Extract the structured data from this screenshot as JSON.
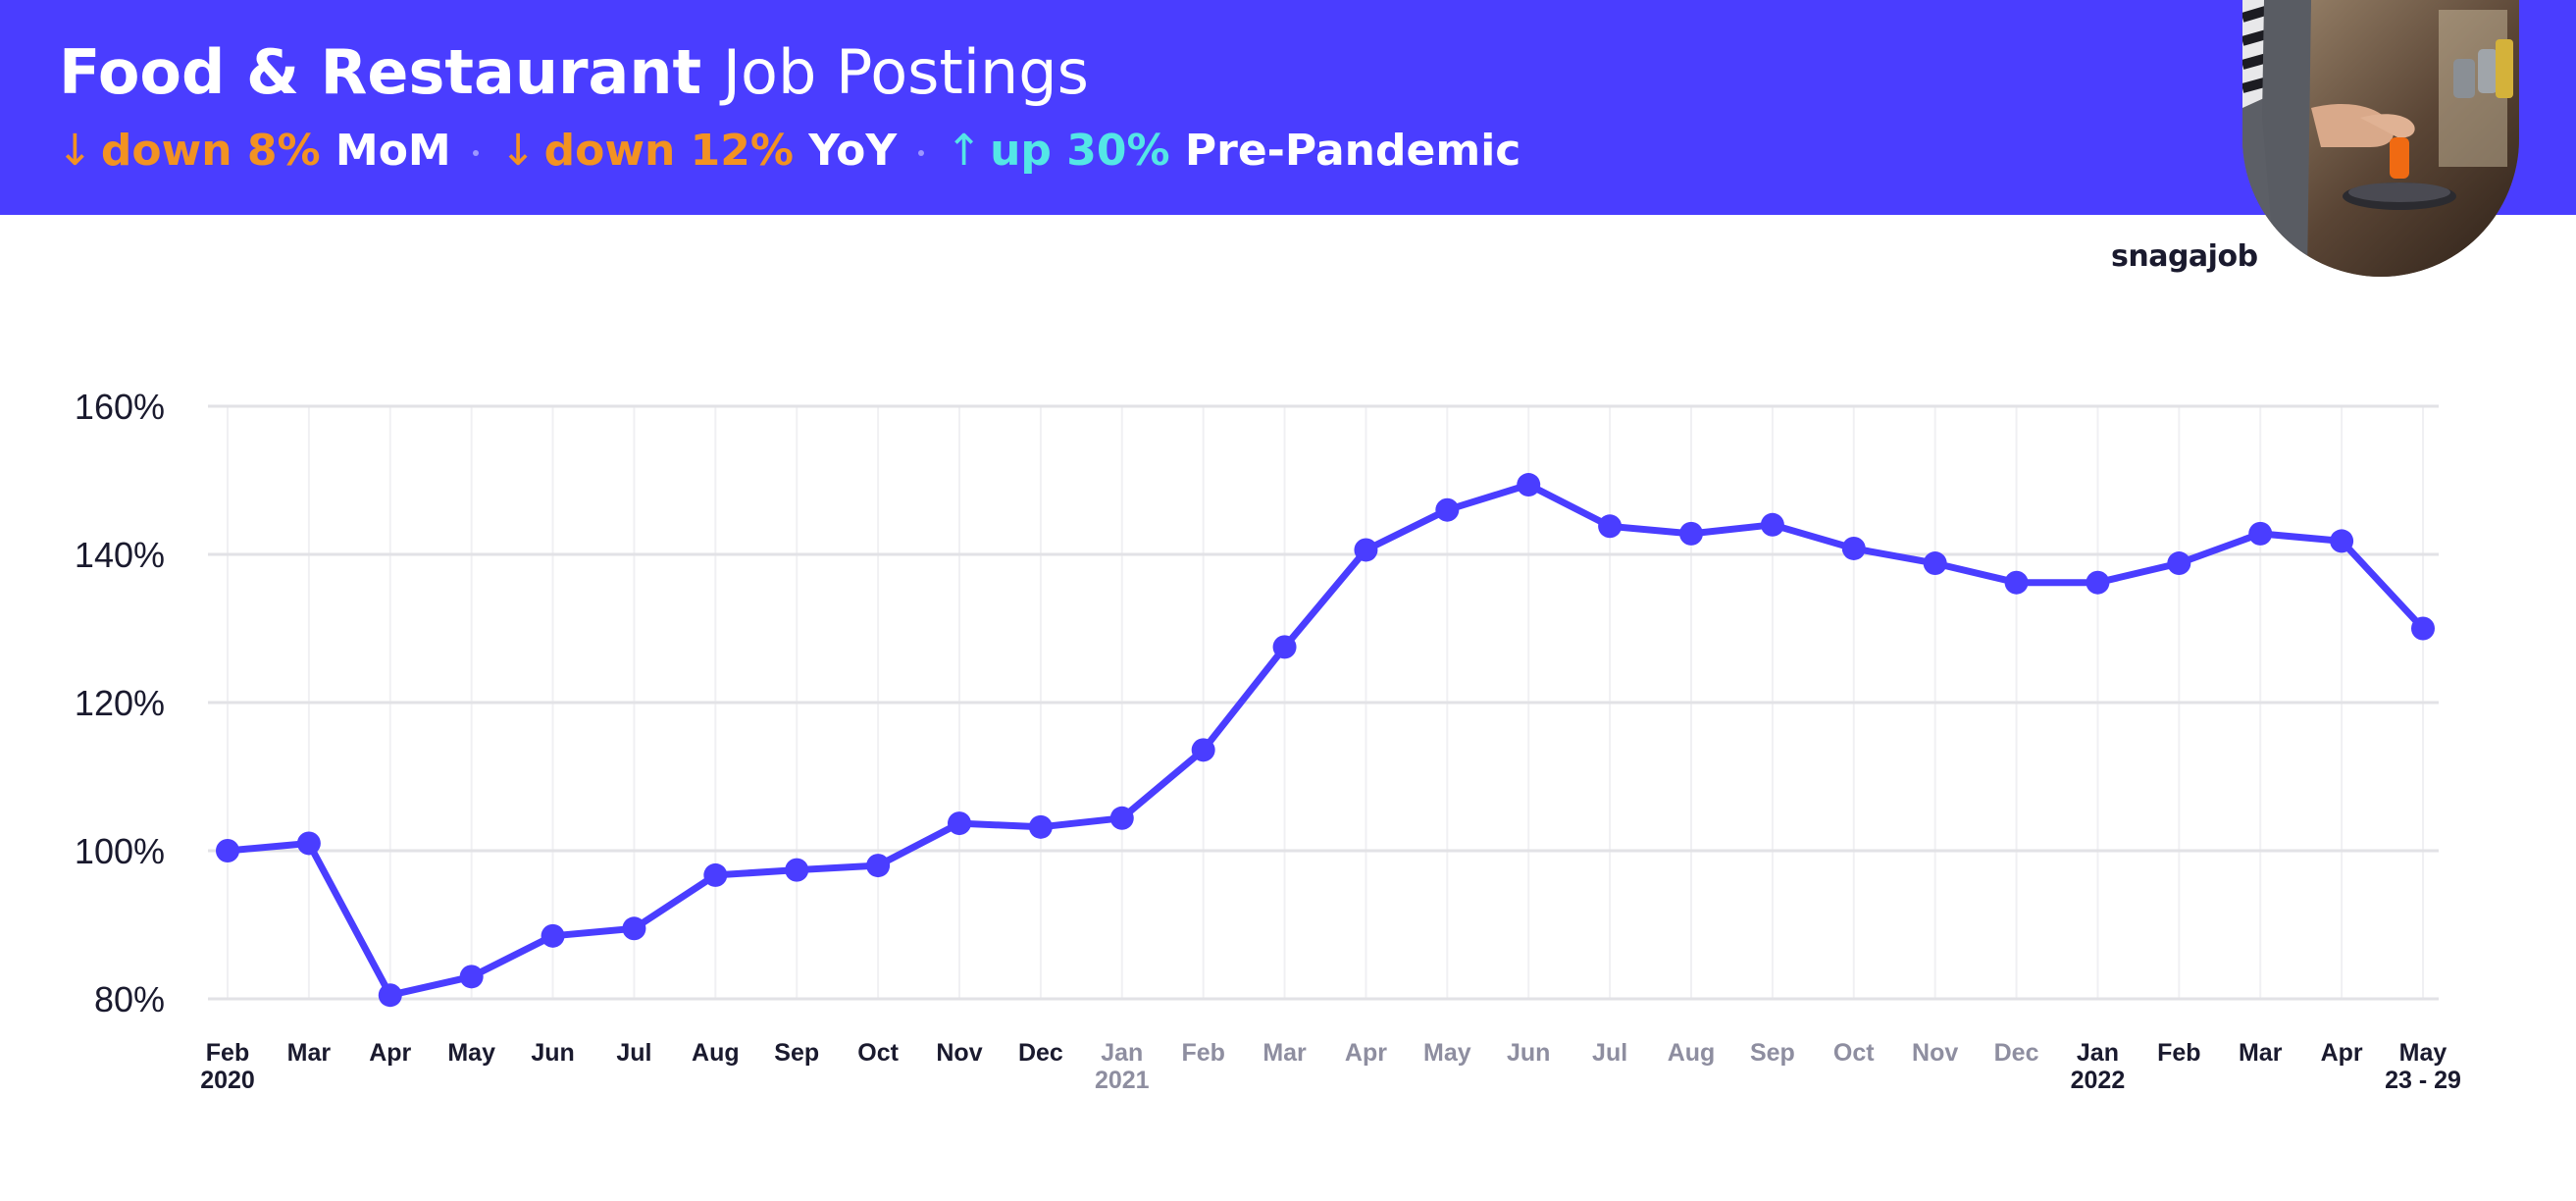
{
  "header": {
    "title_bold": "Food & Restaurant",
    "title_light": "Job Postings",
    "stats": [
      {
        "arrow": "↓",
        "change": "down 8%",
        "label": "MoM",
        "direction": "down"
      },
      {
        "arrow": "↓",
        "change": "down 12%",
        "label": "YoY",
        "direction": "down"
      },
      {
        "arrow": "↑",
        "change": "up 30%",
        "label": "Pre-Pandemic",
        "direction": "up"
      }
    ]
  },
  "logo": "snagajob",
  "colors": {
    "brand": "#4a3dff",
    "down": "#f29222",
    "up": "#54e6e6",
    "line": "#4a3dff",
    "label_dark": "#1a1a2e",
    "label_muted": "#8e8ea0"
  },
  "chart_data": {
    "type": "line",
    "x": [
      "Feb",
      "Mar",
      "Apr",
      "May",
      "Jun",
      "Jul",
      "Aug",
      "Sep",
      "Oct",
      "Nov",
      "Dec",
      "Jan",
      "Feb",
      "Mar",
      "Apr",
      "May",
      "Jun",
      "Jul",
      "Aug",
      "Sep",
      "Oct",
      "Nov",
      "Dec",
      "Jan",
      "Feb",
      "Mar",
      "Apr",
      "May"
    ],
    "x_sub": [
      "2020",
      "",
      "",
      "",
      "",
      "",
      "",
      "",
      "",
      "",
      "",
      "2021",
      "",
      "",
      "",
      "",
      "",
      "",
      "",
      "",
      "",
      "",
      "",
      "2022",
      "",
      "",
      "",
      "23 - 29"
    ],
    "x_emphasis": [
      true,
      true,
      true,
      true,
      true,
      true,
      true,
      true,
      true,
      true,
      true,
      false,
      false,
      false,
      false,
      false,
      false,
      false,
      false,
      false,
      false,
      false,
      false,
      true,
      true,
      true,
      true,
      true
    ],
    "series": [
      {
        "values": [
          100,
          101,
          80.5,
          83,
          88.5,
          89.5,
          96.7,
          97.4,
          98,
          103.7,
          103.2,
          104.4,
          113.6,
          127.5,
          140.6,
          146,
          149.4,
          143.8,
          142.8,
          144,
          140.8,
          138.8,
          136.2,
          136.2,
          138.8,
          142.8,
          141.8,
          130
        ]
      }
    ],
    "y_ticks": [
      "160%",
      "140%",
      "120%",
      "100%",
      "80%"
    ],
    "y_tick_values": [
      160,
      140,
      120,
      100,
      80
    ],
    "ylim": [
      80,
      160
    ],
    "grid": true,
    "legend": "none"
  }
}
